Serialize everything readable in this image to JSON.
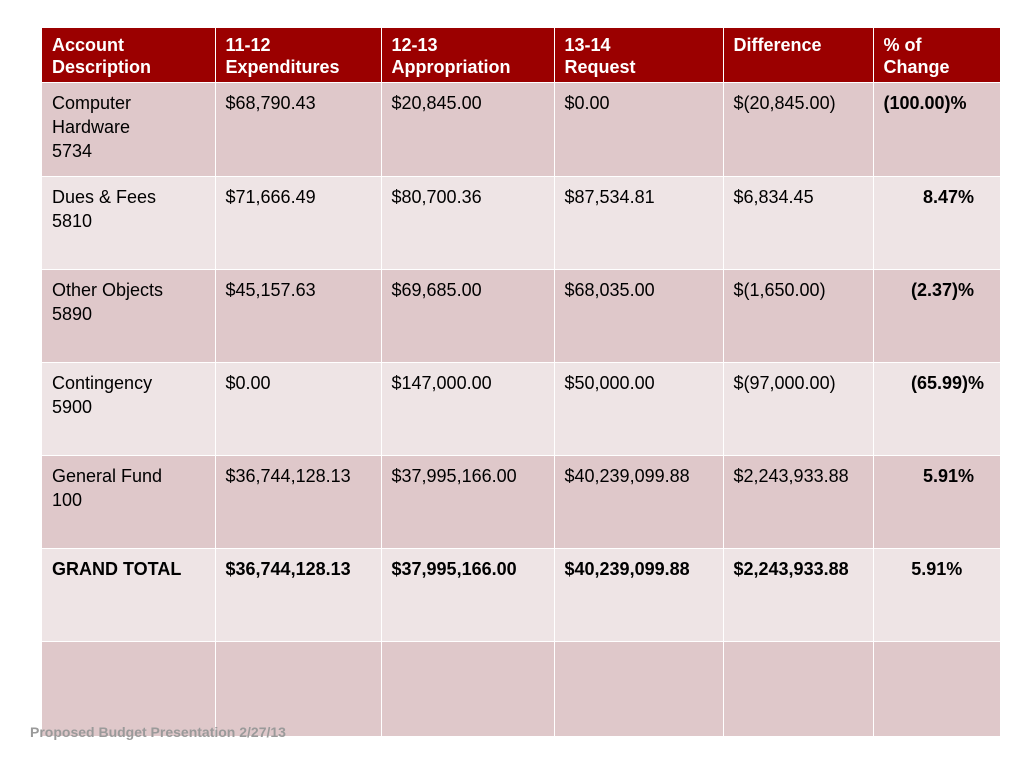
{
  "table": {
    "headers": [
      [
        "Account",
        "Description"
      ],
      [
        "11-12",
        "Expenditures"
      ],
      [
        "12-13",
        "Appropriation"
      ],
      [
        "13-14",
        "Request"
      ],
      [
        "Difference",
        ""
      ],
      [
        "% of",
        "Change"
      ]
    ],
    "rows": [
      {
        "desc": [
          "Computer",
          "Hardware",
          "5734"
        ],
        "exp": "$68,790.43",
        "approp": "$20,845.00",
        "req": "$0.00",
        "diff": "$(20,845.00)",
        "pct": "(100.00)%"
      },
      {
        "desc": [
          "Dues & Fees",
          "5810"
        ],
        "exp": "$71,666.49",
        "approp": "$80,700.36",
        "req": "$87,534.81",
        "diff": "$6,834.45",
        "pct": "8.47%"
      },
      {
        "desc": [
          "Other Objects",
          "5890"
        ],
        "exp": "$45,157.63",
        "approp": "$69,685.00",
        "req": "$68,035.00",
        "diff": "$(1,650.00)",
        "pct": "(2.37)%"
      },
      {
        "desc": [
          "Contingency",
          "5900"
        ],
        "exp": "$0.00",
        "approp": "$147,000.00",
        "req": "$50,000.00",
        "diff": "$(97,000.00)",
        "pct": "(65.99)%"
      },
      {
        "desc": [
          "General Fund",
          "100"
        ],
        "exp": "$36,744,128.13",
        "approp": "$37,995,166.00",
        "req": "$40,239,099.88",
        "diff": "$2,243,933.88",
        "pct": "5.91%"
      }
    ],
    "total": {
      "label": "GRAND TOTAL",
      "exp": "$36,744,128.13",
      "approp": "$37,995,166.00",
      "req": "$40,239,099.88",
      "diff": "$2,243,933.88",
      "pct": "5.91%"
    }
  },
  "footer": {
    "text": "Proposed Budget Presentation 2/27/13"
  },
  "colors": {
    "header_bg": "#9b0000",
    "row_dark": "#dfc8ca",
    "row_light": "#eee4e5"
  }
}
